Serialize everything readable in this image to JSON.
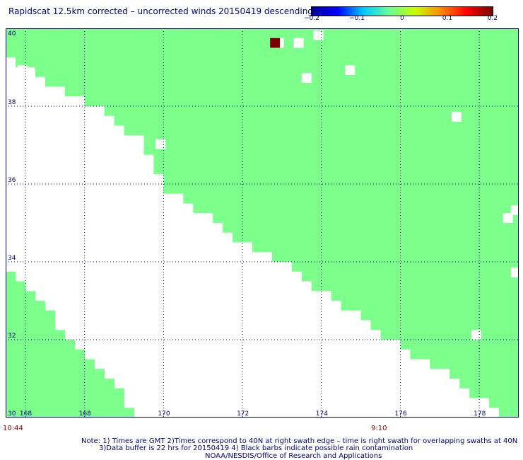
{
  "title": "Rapidscat 12.5km corrected – uncorrected winds 20150419 descending",
  "colorbar": {
    "ticks": [
      "−0.2",
      "−0.1",
      "0",
      "0.1",
      "0.2"
    ],
    "colors": [
      "#00008f",
      "#0000ff",
      "#00c8ff",
      "#66ff99",
      "#c8ff00",
      "#ff8800",
      "#ff0000",
      "#7a0000"
    ]
  },
  "chart_data": {
    "type": "heatmap",
    "title": "Rapidscat 12.5km corrected – uncorrected winds 20150419 descending",
    "xlim": [
      166,
      179
    ],
    "ylim": [
      30,
      40
    ],
    "x_ticks": [
      "168",
      "168",
      "170",
      "172",
      "174",
      "176",
      "178"
    ],
    "y_ticks": [
      "40",
      "38",
      "36",
      "34",
      "32",
      "30"
    ],
    "grid": true,
    "cell_size_deg": 0.25,
    "fill_value": 0,
    "fill_color": "#7dff8c",
    "swath_right_edge": [
      [
        166,
        39.25
      ],
      [
        166.5,
        39.0
      ],
      [
        167.0,
        38.6
      ],
      [
        167.5,
        38.3
      ],
      [
        168.0,
        38.1
      ],
      [
        168.5,
        37.9
      ],
      [
        169.0,
        37.4
      ],
      [
        169.5,
        37.1
      ],
      [
        170.0,
        35.9
      ],
      [
        170.5,
        35.6
      ],
      [
        171.0,
        35.2
      ],
      [
        171.5,
        34.9
      ],
      [
        172.0,
        34.5
      ],
      [
        172.5,
        34.3
      ],
      [
        173.0,
        34.0
      ],
      [
        173.5,
        33.6
      ],
      [
        174.0,
        33.2
      ],
      [
        174.5,
        32.9
      ],
      [
        175.0,
        32.6
      ],
      [
        175.5,
        32.2
      ],
      [
        176.0,
        31.8
      ],
      [
        176.5,
        31.5
      ],
      [
        177.0,
        31.2
      ],
      [
        177.5,
        30.9
      ],
      [
        178.0,
        30.5
      ],
      [
        178.5,
        30.1
      ],
      [
        179,
        30.0
      ]
    ],
    "swath_left_edge": [
      [
        166,
        34.0
      ],
      [
        166.5,
        33.4
      ],
      [
        167.0,
        32.8
      ],
      [
        167.5,
        32.2
      ],
      [
        168.0,
        31.6
      ],
      [
        168.5,
        31.0
      ],
      [
        169.0,
        30.5
      ],
      [
        169.3,
        30.0
      ]
    ],
    "missing_cells": [
      [
        172.8,
        39.5
      ],
      [
        173.3,
        39.5
      ],
      [
        173.8,
        39.7
      ],
      [
        173.5,
        38.6
      ],
      [
        174.6,
        38.8
      ],
      [
        166.3,
        38.8
      ],
      [
        169.8,
        36.9
      ],
      [
        177.3,
        37.6
      ],
      [
        178.8,
        35.2
      ],
      [
        178.6,
        35.0
      ],
      [
        178.8,
        33.6
      ],
      [
        177.8,
        32.0
      ]
    ],
    "highlight_cells": [
      {
        "x": 172.7,
        "y": 39.5,
        "value": 0.2,
        "color": "#7a0000"
      }
    ]
  },
  "time_left": "10:44",
  "time_mid": "9:10",
  "notes": [
    "Note: 1) Times are GMT 2)Times correspond to 40N at right swath edge – time is right swath for overlapping swaths at 40N",
    "3)Data buffer is 22 hrs for 20150419 4) Black barbs indicate possible rain contamination",
    "NOAA/NESDIS/Office of Research and Applications"
  ]
}
